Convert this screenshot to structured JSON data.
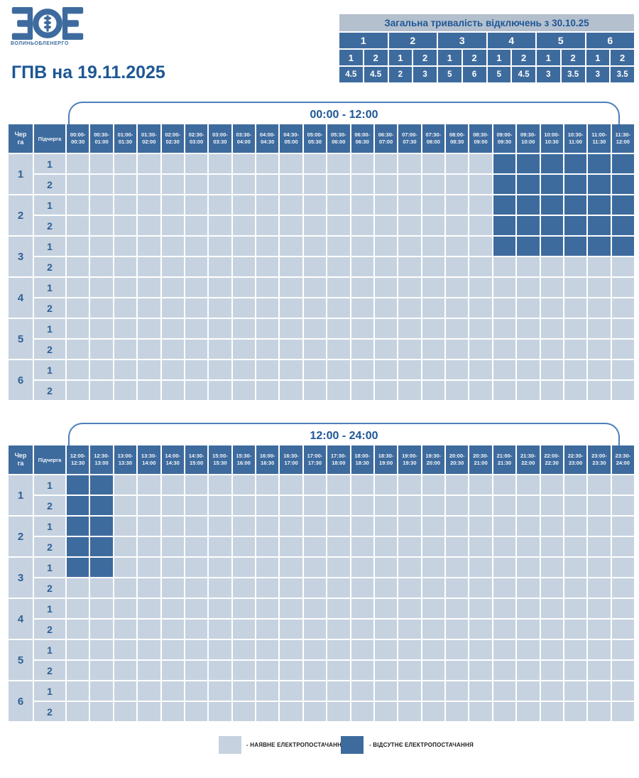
{
  "brand": {
    "logo_text": "ЗОЕ",
    "name": "ВОЛИНЬОБЛЕНЕРГО"
  },
  "page_title": "ГПВ на 19.11.2025",
  "summary": {
    "title": "Загальна тривалість відключень з 30.10.25",
    "queues": [
      "1",
      "2",
      "3",
      "4",
      "5",
      "6"
    ],
    "subqueues": [
      "1",
      "2",
      "1",
      "2",
      "1",
      "2",
      "1",
      "2",
      "1",
      "2",
      "1",
      "2"
    ],
    "durations_hours": [
      "4.5",
      "4.5",
      "2",
      "3",
      "5",
      "6",
      "5",
      "4.5",
      "3",
      "3.5",
      "3",
      "3.5"
    ]
  },
  "chart_data": {
    "type": "heatmap",
    "values_meaning": {
      "0": "наявне електропостачання",
      "1": "відсутнє електропостачання"
    },
    "tables": [
      {
        "period_label": "00:00 - 12:00",
        "queue_header": "Черга",
        "subqueue_header": "Підчерга",
        "time_slots": [
          "00:00-00:30",
          "00:30-01:00",
          "01:00-01:30",
          "01:30-02:00",
          "02:00-02:30",
          "02:30-03:00",
          "03:00-03:30",
          "03:30-04:00",
          "04:00-04:30",
          "04:30-05:00",
          "05:00-05:30",
          "05:30-06:00",
          "06:00-06:30",
          "06:30-07:00",
          "07:00-07:30",
          "07:30-08:00",
          "08:00-08:30",
          "08:30-09:00",
          "09:00-09:30",
          "09:30-10:00",
          "10:00-10:30",
          "10:30-11:00",
          "11:00-11:30",
          "11:30-12:00"
        ],
        "rows": [
          {
            "queue": "1",
            "subqueue": "1",
            "slots": [
              0,
              0,
              0,
              0,
              0,
              0,
              0,
              0,
              0,
              0,
              0,
              0,
              0,
              0,
              0,
              0,
              0,
              0,
              1,
              1,
              1,
              1,
              1,
              1
            ]
          },
          {
            "queue": "1",
            "subqueue": "2",
            "slots": [
              0,
              0,
              0,
              0,
              0,
              0,
              0,
              0,
              0,
              0,
              0,
              0,
              0,
              0,
              0,
              0,
              0,
              0,
              1,
              1,
              1,
              1,
              1,
              1
            ]
          },
          {
            "queue": "2",
            "subqueue": "1",
            "slots": [
              0,
              0,
              0,
              0,
              0,
              0,
              0,
              0,
              0,
              0,
              0,
              0,
              0,
              0,
              0,
              0,
              0,
              0,
              1,
              1,
              1,
              1,
              1,
              1
            ]
          },
          {
            "queue": "2",
            "subqueue": "2",
            "slots": [
              0,
              0,
              0,
              0,
              0,
              0,
              0,
              0,
              0,
              0,
              0,
              0,
              0,
              0,
              0,
              0,
              0,
              0,
              1,
              1,
              1,
              1,
              1,
              1
            ]
          },
          {
            "queue": "3",
            "subqueue": "1",
            "slots": [
              0,
              0,
              0,
              0,
              0,
              0,
              0,
              0,
              0,
              0,
              0,
              0,
              0,
              0,
              0,
              0,
              0,
              0,
              1,
              1,
              1,
              1,
              1,
              1
            ]
          },
          {
            "queue": "3",
            "subqueue": "2",
            "slots": [
              0,
              0,
              0,
              0,
              0,
              0,
              0,
              0,
              0,
              0,
              0,
              0,
              0,
              0,
              0,
              0,
              0,
              0,
              0,
              0,
              0,
              0,
              0,
              0
            ]
          },
          {
            "queue": "4",
            "subqueue": "1",
            "slots": [
              0,
              0,
              0,
              0,
              0,
              0,
              0,
              0,
              0,
              0,
              0,
              0,
              0,
              0,
              0,
              0,
              0,
              0,
              0,
              0,
              0,
              0,
              0,
              0
            ]
          },
          {
            "queue": "4",
            "subqueue": "2",
            "slots": [
              0,
              0,
              0,
              0,
              0,
              0,
              0,
              0,
              0,
              0,
              0,
              0,
              0,
              0,
              0,
              0,
              0,
              0,
              0,
              0,
              0,
              0,
              0,
              0
            ]
          },
          {
            "queue": "5",
            "subqueue": "1",
            "slots": [
              0,
              0,
              0,
              0,
              0,
              0,
              0,
              0,
              0,
              0,
              0,
              0,
              0,
              0,
              0,
              0,
              0,
              0,
              0,
              0,
              0,
              0,
              0,
              0
            ]
          },
          {
            "queue": "5",
            "subqueue": "2",
            "slots": [
              0,
              0,
              0,
              0,
              0,
              0,
              0,
              0,
              0,
              0,
              0,
              0,
              0,
              0,
              0,
              0,
              0,
              0,
              0,
              0,
              0,
              0,
              0,
              0
            ]
          },
          {
            "queue": "6",
            "subqueue": "1",
            "slots": [
              0,
              0,
              0,
              0,
              0,
              0,
              0,
              0,
              0,
              0,
              0,
              0,
              0,
              0,
              0,
              0,
              0,
              0,
              0,
              0,
              0,
              0,
              0,
              0
            ]
          },
          {
            "queue": "6",
            "subqueue": "2",
            "slots": [
              0,
              0,
              0,
              0,
              0,
              0,
              0,
              0,
              0,
              0,
              0,
              0,
              0,
              0,
              0,
              0,
              0,
              0,
              0,
              0,
              0,
              0,
              0,
              0
            ]
          }
        ]
      },
      {
        "period_label": "12:00 - 24:00",
        "queue_header": "Черга",
        "subqueue_header": "Підчерга",
        "time_slots": [
          "12:00-12:30",
          "12:30-13:00",
          "13:00-13:30",
          "13:30-14:00",
          "14:00-14:30",
          "14:30-15:00",
          "15:00-15:30",
          "15:30-16:00",
          "16:00-16:30",
          "16:30-17:00",
          "17:00-17:30",
          "17:30-18:00",
          "18:00-18:30",
          "18:30-19:00",
          "19:00-19:30",
          "19:30-20:00",
          "20:00-20:30",
          "20:30-21:00",
          "21:00-21:30",
          "21:30-22:00",
          "22:00-22:30",
          "22:30-23:00",
          "23:00-23:30",
          "23:30-24:00"
        ],
        "rows": [
          {
            "queue": "1",
            "subqueue": "1",
            "slots": [
              1,
              1,
              0,
              0,
              0,
              0,
              0,
              0,
              0,
              0,
              0,
              0,
              0,
              0,
              0,
              0,
              0,
              0,
              0,
              0,
              0,
              0,
              0,
              0
            ]
          },
          {
            "queue": "1",
            "subqueue": "2",
            "slots": [
              1,
              1,
              0,
              0,
              0,
              0,
              0,
              0,
              0,
              0,
              0,
              0,
              0,
              0,
              0,
              0,
              0,
              0,
              0,
              0,
              0,
              0,
              0,
              0
            ]
          },
          {
            "queue": "2",
            "subqueue": "1",
            "slots": [
              1,
              1,
              0,
              0,
              0,
              0,
              0,
              0,
              0,
              0,
              0,
              0,
              0,
              0,
              0,
              0,
              0,
              0,
              0,
              0,
              0,
              0,
              0,
              0
            ]
          },
          {
            "queue": "2",
            "subqueue": "2",
            "slots": [
              1,
              1,
              0,
              0,
              0,
              0,
              0,
              0,
              0,
              0,
              0,
              0,
              0,
              0,
              0,
              0,
              0,
              0,
              0,
              0,
              0,
              0,
              0,
              0
            ]
          },
          {
            "queue": "3",
            "subqueue": "1",
            "slots": [
              1,
              1,
              0,
              0,
              0,
              0,
              0,
              0,
              0,
              0,
              0,
              0,
              0,
              0,
              0,
              0,
              0,
              0,
              0,
              0,
              0,
              0,
              0,
              0
            ]
          },
          {
            "queue": "3",
            "subqueue": "2",
            "slots": [
              0,
              0,
              0,
              0,
              0,
              0,
              0,
              0,
              0,
              0,
              0,
              0,
              0,
              0,
              0,
              0,
              0,
              0,
              0,
              0,
              0,
              0,
              0,
              0
            ]
          },
          {
            "queue": "4",
            "subqueue": "1",
            "slots": [
              0,
              0,
              0,
              0,
              0,
              0,
              0,
              0,
              0,
              0,
              0,
              0,
              0,
              0,
              0,
              0,
              0,
              0,
              0,
              0,
              0,
              0,
              0,
              0
            ]
          },
          {
            "queue": "4",
            "subqueue": "2",
            "slots": [
              0,
              0,
              0,
              0,
              0,
              0,
              0,
              0,
              0,
              0,
              0,
              0,
              0,
              0,
              0,
              0,
              0,
              0,
              0,
              0,
              0,
              0,
              0,
              0
            ]
          },
          {
            "queue": "5",
            "subqueue": "1",
            "slots": [
              0,
              0,
              0,
              0,
              0,
              0,
              0,
              0,
              0,
              0,
              0,
              0,
              0,
              0,
              0,
              0,
              0,
              0,
              0,
              0,
              0,
              0,
              0,
              0
            ]
          },
          {
            "queue": "5",
            "subqueue": "2",
            "slots": [
              0,
              0,
              0,
              0,
              0,
              0,
              0,
              0,
              0,
              0,
              0,
              0,
              0,
              0,
              0,
              0,
              0,
              0,
              0,
              0,
              0,
              0,
              0,
              0
            ]
          },
          {
            "queue": "6",
            "subqueue": "1",
            "slots": [
              0,
              0,
              0,
              0,
              0,
              0,
              0,
              0,
              0,
              0,
              0,
              0,
              0,
              0,
              0,
              0,
              0,
              0,
              0,
              0,
              0,
              0,
              0,
              0
            ]
          },
          {
            "queue": "6",
            "subqueue": "2",
            "slots": [
              0,
              0,
              0,
              0,
              0,
              0,
              0,
              0,
              0,
              0,
              0,
              0,
              0,
              0,
              0,
              0,
              0,
              0,
              0,
              0,
              0,
              0,
              0,
              0
            ]
          }
        ]
      }
    ]
  },
  "legend": {
    "on_label": "- НАЯВНЕ ЕЛЕКТРОПОСТАЧАННЯ",
    "off_label": "- ВІДСУТНЄ ЕЛЕКТРОПОСТАЧАННЯ"
  },
  "colors": {
    "power_on": "#c6d2e0",
    "power_off": "#3e6b9e",
    "header_bg": "#3e6b9e",
    "summary_title_bg": "#b4c0ce",
    "accent_text": "#1e5795",
    "bracket_stroke": "#4f7fba"
  }
}
